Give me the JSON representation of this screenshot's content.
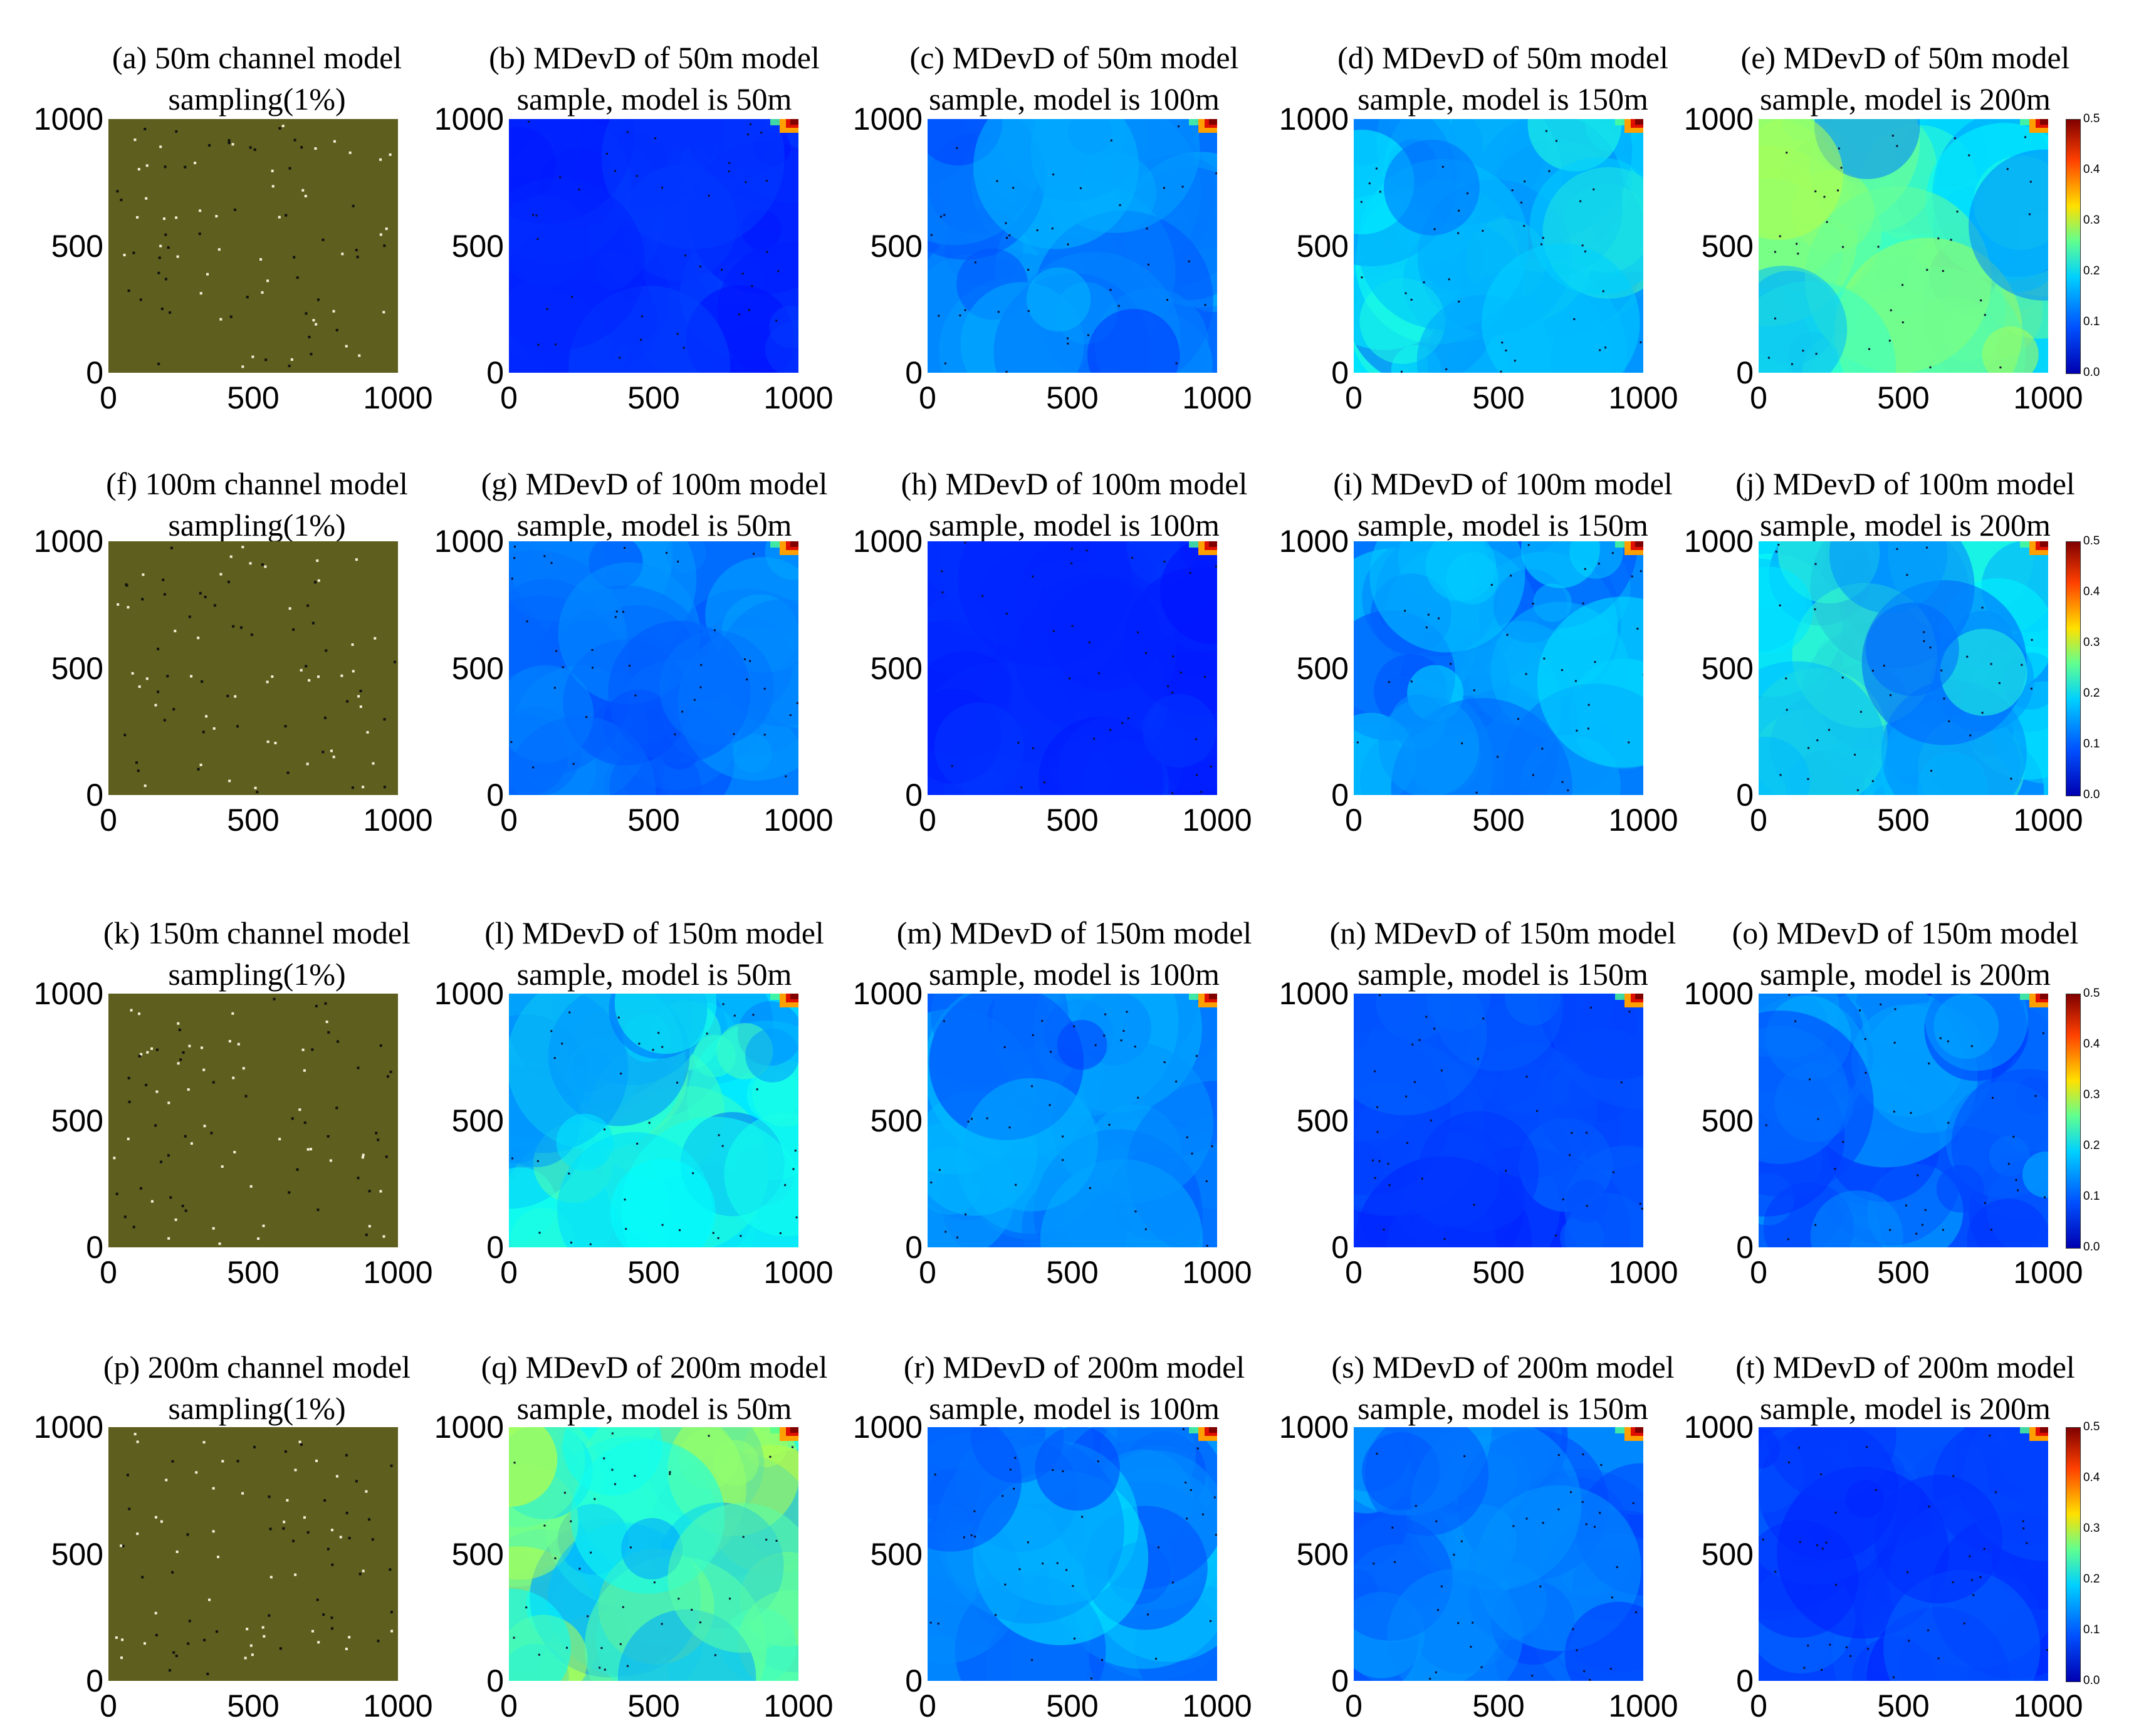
{
  "figure": {
    "colorbar_ticks": [
      "0.5",
      "0.4",
      "0.3",
      "0.2",
      "0.1",
      "0.0"
    ],
    "axis_ticks": [
      "0",
      "500",
      "1000"
    ],
    "colors": {
      "map_background": "#5e5e1e",
      "sample_white": "#f2f2d8",
      "sample_black": "#111111",
      "jet_low": "#0000b0",
      "jet_high": "#800000"
    },
    "rows": [
      {
        "panels": [
          {
            "line1": "(a) 50m channel model",
            "line2": "sampling(1%)",
            "kind": "samples"
          },
          {
            "line1": "(b) MDevD of 50m model",
            "line2": "sample, model is 50m",
            "kind": "mdevd",
            "level": 0.03
          },
          {
            "line1": "(c) MDevD of 50m model",
            "line2": "sample, model is 100m",
            "kind": "mdevd",
            "level": 0.08
          },
          {
            "line1": "(d) MDevD of 50m model",
            "line2": "sample, model is 150m",
            "kind": "mdevd",
            "level": 0.14
          },
          {
            "line1": "(e) MDevD of 50m model",
            "line2": "sample, model is 200m",
            "kind": "mdevd",
            "level": 0.19
          }
        ]
      },
      {
        "panels": [
          {
            "line1": "(f) 100m channel model",
            "line2": "sampling(1%)",
            "kind": "samples"
          },
          {
            "line1": "(g) MDevD of 100m model",
            "line2": "sample, model is 50m",
            "kind": "mdevd",
            "level": 0.08
          },
          {
            "line1": "(h) MDevD of 100m model",
            "line2": "sample, model is 100m",
            "kind": "mdevd",
            "level": 0.03
          },
          {
            "line1": "(i) MDevD of 100m model",
            "line2": "sample, model is 150m",
            "kind": "mdevd",
            "level": 0.1
          },
          {
            "line1": "(j) MDevD of 100m model",
            "line2": "sample, model is 200m",
            "kind": "mdevd",
            "level": 0.14
          }
        ]
      },
      {
        "panels": [
          {
            "line1": "(k) 150m channel model",
            "line2": "sampling(1%)",
            "kind": "samples"
          },
          {
            "line1": "(l) MDevD of 150m model",
            "line2": "sample, model is 50m",
            "kind": "mdevd",
            "level": 0.15
          },
          {
            "line1": "(m) MDevD of 150m model",
            "line2": "sample, model is 100m",
            "kind": "mdevd",
            "level": 0.09
          },
          {
            "line1": "(n) MDevD of 150m model",
            "line2": "sample, model is 150m",
            "kind": "mdevd",
            "level": 0.05
          },
          {
            "line1": "(o) MDevD of 150m model",
            "line2": "sample, model is 200m",
            "kind": "mdevd",
            "level": 0.08
          }
        ]
      },
      {
        "panels": [
          {
            "line1": "(p) 200m channel model",
            "line2": "sampling(1%)",
            "kind": "samples"
          },
          {
            "line1": "(q) MDevD of 200m model",
            "line2": "sample, model is 50m",
            "kind": "mdevd",
            "level": 0.21
          },
          {
            "line1": "(r) MDevD of 200m model",
            "line2": "sample, model is 100m",
            "kind": "mdevd",
            "level": 0.1
          },
          {
            "line1": "(s) MDevD of 200m model",
            "line2": "sample, model is 150m",
            "kind": "mdevd",
            "level": 0.08
          },
          {
            "line1": "(t) MDevD of 200m model",
            "line2": "sample, model is 200m",
            "kind": "mdevd",
            "level": 0.05
          }
        ]
      }
    ]
  }
}
